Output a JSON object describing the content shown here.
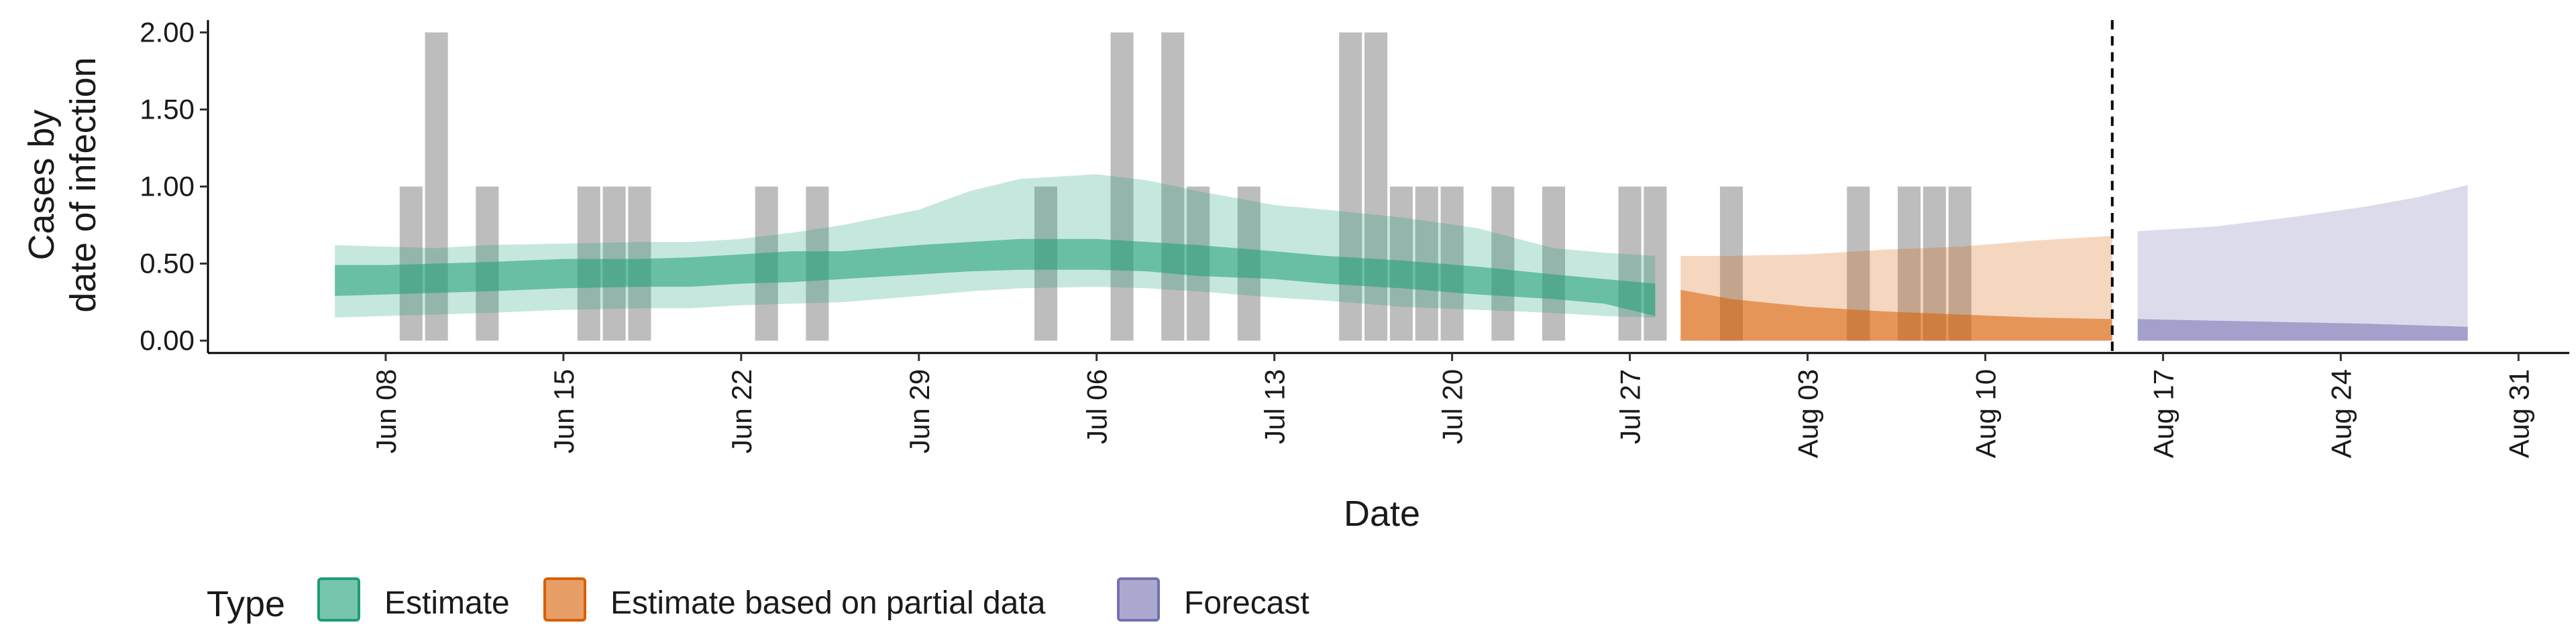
{
  "chart_data": {
    "type": "area",
    "xlabel": "Date",
    "ylabel_lines": [
      "Cases by",
      "date of infection"
    ],
    "x_range": [
      "2020-06-01",
      "2020-09-02"
    ],
    "y_range": [
      -0.08,
      2.08
    ],
    "y_ticks": [
      {
        "value": 0.0,
        "label": "0.00"
      },
      {
        "value": 0.5,
        "label": "0.50"
      },
      {
        "value": 1.0,
        "label": "1.00"
      },
      {
        "value": 1.5,
        "label": "1.50"
      },
      {
        "value": 2.0,
        "label": "2.00"
      }
    ],
    "x_ticks": [
      {
        "date": "2020-06-08",
        "label": "Jun 08"
      },
      {
        "date": "2020-06-15",
        "label": "Jun 15"
      },
      {
        "date": "2020-06-22",
        "label": "Jun 22"
      },
      {
        "date": "2020-06-29",
        "label": "Jun 29"
      },
      {
        "date": "2020-07-06",
        "label": "Jul 06"
      },
      {
        "date": "2020-07-13",
        "label": "Jul 13"
      },
      {
        "date": "2020-07-20",
        "label": "Jul 20"
      },
      {
        "date": "2020-07-27",
        "label": "Jul 27"
      },
      {
        "date": "2020-08-03",
        "label": "Aug 03"
      },
      {
        "date": "2020-08-10",
        "label": "Aug 10"
      },
      {
        "date": "2020-08-17",
        "label": "Aug 17"
      },
      {
        "date": "2020-08-24",
        "label": "Aug 24"
      },
      {
        "date": "2020-08-31",
        "label": "Aug 31"
      }
    ],
    "grid": false,
    "vline_date": "2020-08-15",
    "reported_cases": [
      {
        "date": "2020-06-09",
        "value": 1
      },
      {
        "date": "2020-06-10",
        "value": 2
      },
      {
        "date": "2020-06-12",
        "value": 1
      },
      {
        "date": "2020-06-16",
        "value": 1
      },
      {
        "date": "2020-06-17",
        "value": 1
      },
      {
        "date": "2020-06-18",
        "value": 1
      },
      {
        "date": "2020-06-23",
        "value": 1
      },
      {
        "date": "2020-06-25",
        "value": 1
      },
      {
        "date": "2020-07-04",
        "value": 1
      },
      {
        "date": "2020-07-07",
        "value": 2
      },
      {
        "date": "2020-07-09",
        "value": 2
      },
      {
        "date": "2020-07-10",
        "value": 1
      },
      {
        "date": "2020-07-12",
        "value": 1
      },
      {
        "date": "2020-07-16",
        "value": 2
      },
      {
        "date": "2020-07-17",
        "value": 2
      },
      {
        "date": "2020-07-18",
        "value": 1
      },
      {
        "date": "2020-07-19",
        "value": 1
      },
      {
        "date": "2020-07-20",
        "value": 1
      },
      {
        "date": "2020-07-22",
        "value": 1
      },
      {
        "date": "2020-07-24",
        "value": 1
      },
      {
        "date": "2020-07-27",
        "value": 1
      },
      {
        "date": "2020-07-28",
        "value": 1
      },
      {
        "date": "2020-07-31",
        "value": 1
      },
      {
        "date": "2020-08-05",
        "value": 1
      },
      {
        "date": "2020-08-07",
        "value": 1
      },
      {
        "date": "2020-08-08",
        "value": 1
      },
      {
        "date": "2020-08-09",
        "value": 1
      }
    ],
    "series": [
      {
        "name": "Estimate",
        "color": "#1b9e77",
        "points": [
          [
            "2020-06-06",
            0.15,
            0.29,
            0.49,
            0.62
          ],
          [
            "2020-06-08",
            0.16,
            0.3,
            0.49,
            0.61
          ],
          [
            "2020-06-10",
            0.17,
            0.31,
            0.5,
            0.6
          ],
          [
            "2020-06-12",
            0.18,
            0.32,
            0.51,
            0.62
          ],
          [
            "2020-06-15",
            0.2,
            0.34,
            0.53,
            0.63
          ],
          [
            "2020-06-18",
            0.21,
            0.35,
            0.53,
            0.64
          ],
          [
            "2020-06-20",
            0.21,
            0.35,
            0.54,
            0.64
          ],
          [
            "2020-06-22",
            0.23,
            0.37,
            0.56,
            0.66
          ],
          [
            "2020-06-24",
            0.24,
            0.38,
            0.58,
            0.7
          ],
          [
            "2020-06-26",
            0.25,
            0.4,
            0.58,
            0.75
          ],
          [
            "2020-06-29",
            0.29,
            0.43,
            0.62,
            0.85
          ],
          [
            "2020-07-01",
            0.32,
            0.45,
            0.64,
            0.97
          ],
          [
            "2020-07-03",
            0.34,
            0.46,
            0.66,
            1.05
          ],
          [
            "2020-07-06",
            0.35,
            0.46,
            0.66,
            1.08
          ],
          [
            "2020-07-08",
            0.34,
            0.45,
            0.64,
            1.04
          ],
          [
            "2020-07-10",
            0.32,
            0.42,
            0.62,
            0.97
          ],
          [
            "2020-07-13",
            0.28,
            0.4,
            0.58,
            0.88
          ],
          [
            "2020-07-15",
            0.26,
            0.37,
            0.55,
            0.85
          ],
          [
            "2020-07-18",
            0.22,
            0.34,
            0.52,
            0.8
          ],
          [
            "2020-07-21",
            0.2,
            0.3,
            0.48,
            0.73
          ],
          [
            "2020-07-24",
            0.18,
            0.27,
            0.43,
            0.6
          ],
          [
            "2020-07-26",
            0.16,
            0.24,
            0.4,
            0.57
          ],
          [
            "2020-07-28",
            0.15,
            0.16,
            0.37,
            0.55
          ]
        ]
      },
      {
        "name": "Estimate based on partial data",
        "color": "#d95f02",
        "points": [
          [
            "2020-07-29",
            0.0,
            0.0,
            0.33,
            0.55
          ],
          [
            "2020-07-31",
            0.0,
            0.0,
            0.27,
            0.55
          ],
          [
            "2020-08-03",
            0.0,
            0.0,
            0.22,
            0.56
          ],
          [
            "2020-08-06",
            0.0,
            0.0,
            0.19,
            0.59
          ],
          [
            "2020-08-09",
            0.0,
            0.0,
            0.17,
            0.61
          ],
          [
            "2020-08-12",
            0.0,
            0.0,
            0.15,
            0.65
          ],
          [
            "2020-08-15",
            0.0,
            0.0,
            0.14,
            0.68
          ]
        ]
      },
      {
        "name": "Forecast",
        "color": "#7570b3",
        "points": [
          [
            "2020-08-16",
            0.0,
            0.0,
            0.14,
            0.71
          ],
          [
            "2020-08-19",
            0.0,
            0.0,
            0.13,
            0.74
          ],
          [
            "2020-08-22",
            0.0,
            0.0,
            0.12,
            0.8
          ],
          [
            "2020-08-25",
            0.0,
            0.0,
            0.11,
            0.87
          ],
          [
            "2020-08-27",
            0.0,
            0.0,
            0.1,
            0.93
          ],
          [
            "2020-08-29",
            0.0,
            0.0,
            0.09,
            1.01
          ]
        ]
      }
    ],
    "legend": {
      "title": "Type",
      "placement": "bottom",
      "items": [
        {
          "label": "Estimate",
          "color": "#1b9e77"
        },
        {
          "label": "Estimate based on partial data",
          "color": "#d95f02"
        },
        {
          "label": "Forecast",
          "color": "#7570b3"
        }
      ]
    }
  }
}
